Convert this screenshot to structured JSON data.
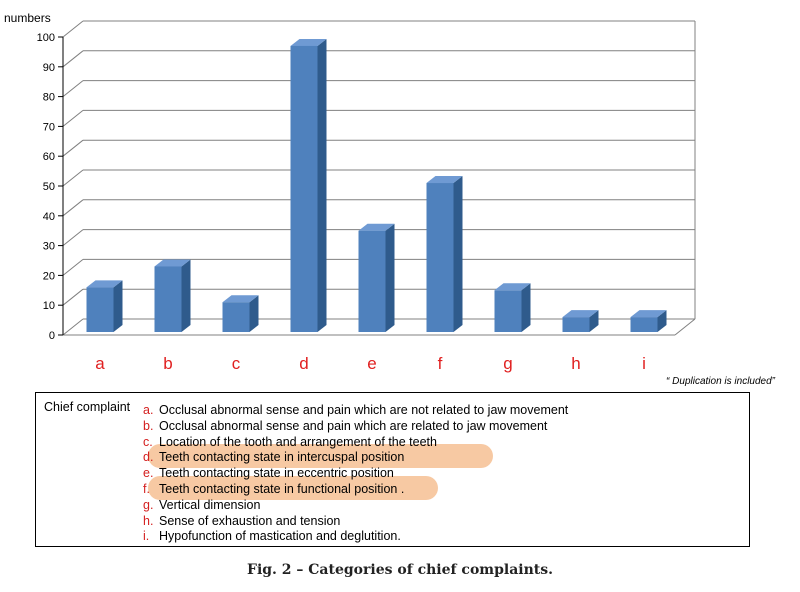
{
  "chart_data": {
    "type": "bar",
    "ylabel": "numbers",
    "categories": [
      "a",
      "b",
      "c",
      "d",
      "e",
      "f",
      "g",
      "h",
      "i"
    ],
    "values": [
      16,
      23,
      11,
      97,
      35,
      51,
      15,
      6,
      6
    ],
    "ylim": [
      0,
      100
    ],
    "yticks": [
      0,
      10,
      20,
      30,
      40,
      50,
      60,
      70,
      80,
      90,
      100
    ],
    "grid": true,
    "bar_color": "#4f81bd",
    "note": "“ Duplication is included”"
  },
  "legend": {
    "title": "Chief complaint",
    "items": [
      {
        "letter": "a.",
        "text": "Occlusal abnormal sense and pain which are not related to jaw movement",
        "highlight": false
      },
      {
        "letter": "b.",
        "text": "Occlusal abnormal sense and pain which are related to jaw movement",
        "highlight": false
      },
      {
        "letter": "c.",
        "text": "Location of the tooth and arrangement of the teeth",
        "highlight": false
      },
      {
        "letter": "d.",
        "text": "Teeth contacting state in intercuspal position",
        "highlight": true
      },
      {
        "letter": "e.",
        "text": "Teeth contacting state in eccentric position",
        "highlight": false
      },
      {
        "letter": "f.",
        "text": "Teeth contacting state in functional position .",
        "highlight": true
      },
      {
        "letter": "g.",
        "text": "Vertical dimension",
        "highlight": false
      },
      {
        "letter": "h.",
        "text": "Sense of exhaustion and tension",
        "highlight": false
      },
      {
        "letter": "i.",
        "text": "Hypofunction of mastication and deglutition.",
        "highlight": false
      }
    ],
    "highlight_color": "#f7c9a3",
    "letter_color": "#d42020"
  },
  "caption": "Fig. 2 – Categories of chief complaints."
}
